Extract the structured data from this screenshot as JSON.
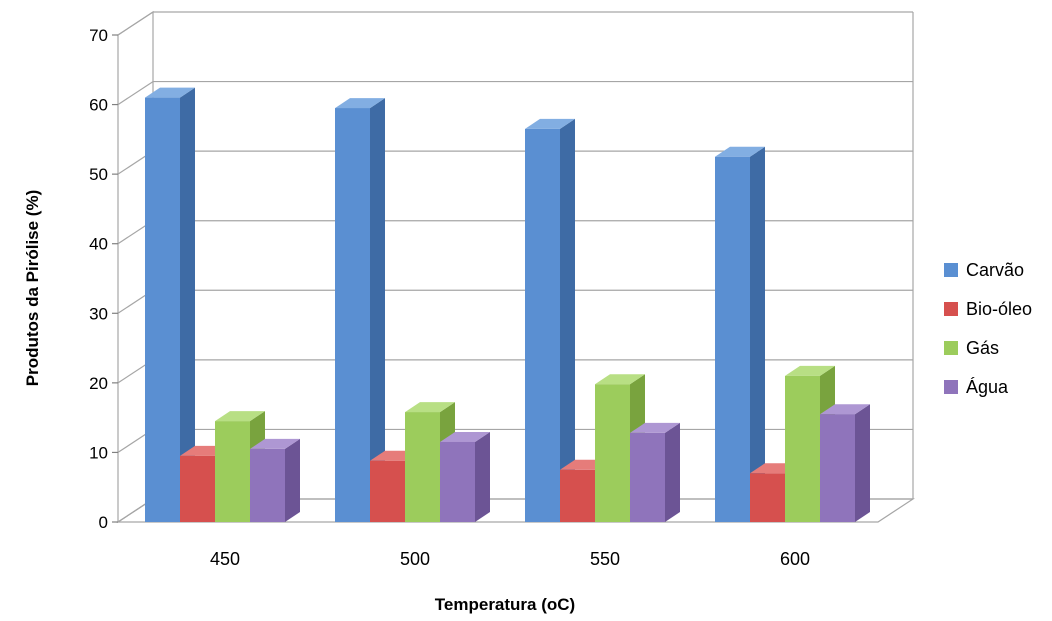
{
  "chart_data": {
    "type": "bar",
    "title": "",
    "xlabel": "Temperatura (oC)",
    "ylabel": "Produtos da Pirólise (%)",
    "categories": [
      "450",
      "500",
      "550",
      "600"
    ],
    "series": [
      {
        "name": "Carvão",
        "values": [
          61,
          59.5,
          56.5,
          52.5
        ]
      },
      {
        "name": "Bio-óleo",
        "values": [
          9.5,
          8.8,
          7.5,
          7
        ]
      },
      {
        "name": "Gás",
        "values": [
          14.5,
          15.8,
          19.8,
          21
        ]
      },
      {
        "name": "Água",
        "values": [
          10.5,
          11.5,
          12.8,
          15.5
        ]
      }
    ],
    "yticks": [
      "0",
      "10",
      "20",
      "30",
      "40",
      "50",
      "60",
      "70"
    ],
    "ylim": [
      0,
      70
    ],
    "grid": true,
    "legend_position": "right",
    "colors": {
      "Carvão": {
        "front": "#5a8fd2",
        "side": "#3e6ba5",
        "top": "#82aee2"
      },
      "Bio-óleo": {
        "front": "#d6504e",
        "side": "#a83a38",
        "top": "#e67c7a"
      },
      "Gás": {
        "front": "#9ccc5c",
        "side": "#79a33e",
        "top": "#b8df84"
      },
      "Água": {
        "front": "#8f74bb",
        "side": "#6c5495",
        "top": "#ae97d3"
      }
    }
  }
}
